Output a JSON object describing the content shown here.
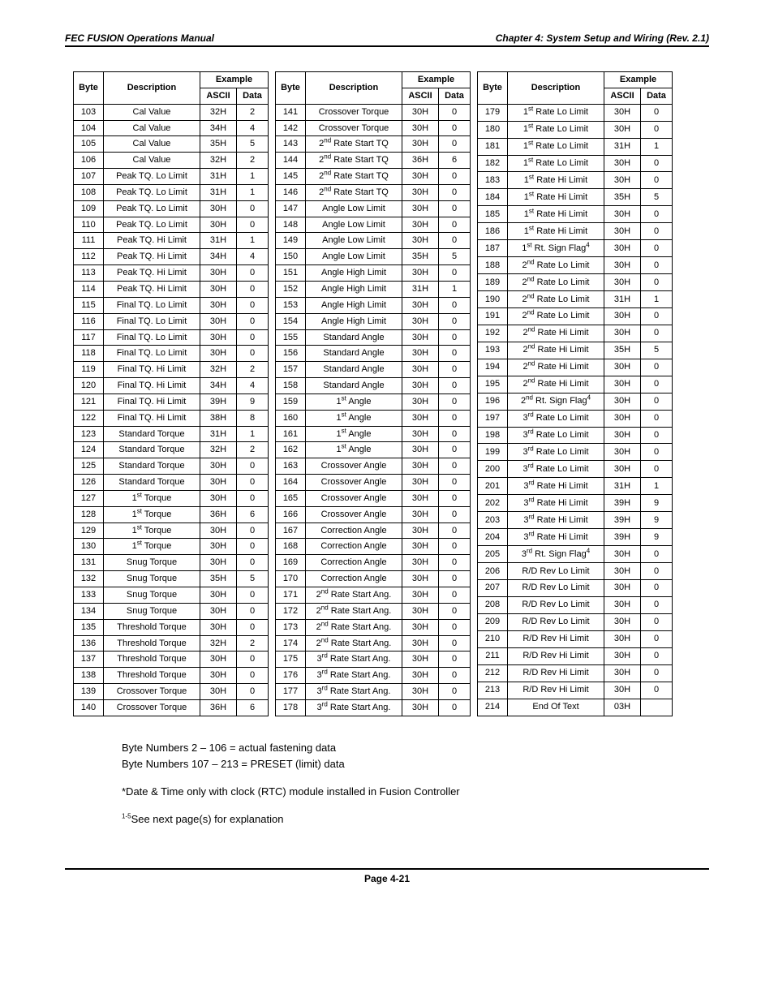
{
  "header": {
    "left": "FEC FUSION Operations Manual",
    "right": "Chapter 4:  System Setup and Wiring     (Rev. 2.1)"
  },
  "theaders": {
    "byte": "Byte",
    "desc": "Description",
    "example": "Example",
    "ascii": "ASCII",
    "data": "Data"
  },
  "table1": [
    {
      "b": "103",
      "d": "Cal Value",
      "a": "32H",
      "v": "2"
    },
    {
      "b": "104",
      "d": "Cal Value",
      "a": "34H",
      "v": "4"
    },
    {
      "b": "105",
      "d": "Cal Value",
      "a": "35H",
      "v": "5"
    },
    {
      "b": "106",
      "d": "Cal Value",
      "a": "32H",
      "v": "2"
    },
    {
      "b": "107",
      "d": "Peak TQ. Lo Limit",
      "a": "31H",
      "v": "1"
    },
    {
      "b": "108",
      "d": "Peak TQ. Lo Limit",
      "a": "31H",
      "v": "1"
    },
    {
      "b": "109",
      "d": "Peak TQ. Lo Limit",
      "a": "30H",
      "v": "0"
    },
    {
      "b": "110",
      "d": "Peak TQ. Lo Limit",
      "a": "30H",
      "v": "0"
    },
    {
      "b": "111",
      "d": "Peak TQ. Hi Limit",
      "a": "31H",
      "v": "1"
    },
    {
      "b": "112",
      "d": "Peak TQ. Hi Limit",
      "a": "34H",
      "v": "4"
    },
    {
      "b": "113",
      "d": "Peak TQ. Hi Limit",
      "a": "30H",
      "v": "0"
    },
    {
      "b": "114",
      "d": "Peak TQ. Hi Limit",
      "a": "30H",
      "v": "0"
    },
    {
      "b": "115",
      "d": "Final TQ. Lo Limit",
      "a": "30H",
      "v": "0"
    },
    {
      "b": "116",
      "d": "Final TQ. Lo Limit",
      "a": "30H",
      "v": "0"
    },
    {
      "b": "117",
      "d": "Final TQ. Lo Limit",
      "a": "30H",
      "v": "0"
    },
    {
      "b": "118",
      "d": "Final TQ. Lo Limit",
      "a": "30H",
      "v": "0"
    },
    {
      "b": "119",
      "d": "Final TQ. Hi Limit",
      "a": "32H",
      "v": "2"
    },
    {
      "b": "120",
      "d": "Final TQ. Hi Limit",
      "a": "34H",
      "v": "4"
    },
    {
      "b": "121",
      "d": "Final TQ. Hi Limit",
      "a": "39H",
      "v": "9"
    },
    {
      "b": "122",
      "d": "Final TQ. Hi Limit",
      "a": "38H",
      "v": "8"
    },
    {
      "b": "123",
      "d": "Standard Torque",
      "a": "31H",
      "v": "1"
    },
    {
      "b": "124",
      "d": "Standard Torque",
      "a": "32H",
      "v": "2"
    },
    {
      "b": "125",
      "d": "Standard Torque",
      "a": "30H",
      "v": "0"
    },
    {
      "b": "126",
      "d": "Standard Torque",
      "a": "30H",
      "v": "0"
    },
    {
      "b": "127",
      "d": "1<sup>st</sup> Torque",
      "a": "30H",
      "v": "0"
    },
    {
      "b": "128",
      "d": "1<sup>st</sup> Torque",
      "a": "36H",
      "v": "6"
    },
    {
      "b": "129",
      "d": "1<sup>st</sup> Torque",
      "a": "30H",
      "v": "0"
    },
    {
      "b": "130",
      "d": "1<sup>st</sup> Torque",
      "a": "30H",
      "v": "0"
    },
    {
      "b": "131",
      "d": "Snug Torque",
      "a": "30H",
      "v": "0"
    },
    {
      "b": "132",
      "d": "Snug Torque",
      "a": "35H",
      "v": "5"
    },
    {
      "b": "133",
      "d": "Snug Torque",
      "a": "30H",
      "v": "0"
    },
    {
      "b": "134",
      "d": "Snug Torque",
      "a": "30H",
      "v": "0"
    },
    {
      "b": "135",
      "d": "Threshold Torque",
      "a": "30H",
      "v": "0"
    },
    {
      "b": "136",
      "d": "Threshold Torque",
      "a": "32H",
      "v": "2"
    },
    {
      "b": "137",
      "d": "Threshold Torque",
      "a": "30H",
      "v": "0"
    },
    {
      "b": "138",
      "d": "Threshold Torque",
      "a": "30H",
      "v": "0"
    },
    {
      "b": "139",
      "d": "Crossover Torque",
      "a": "30H",
      "v": "0"
    },
    {
      "b": "140",
      "d": "Crossover Torque",
      "a": "36H",
      "v": "6"
    }
  ],
  "table2": [
    {
      "b": "141",
      "d": "Crossover Torque",
      "a": "30H",
      "v": "0"
    },
    {
      "b": "142",
      "d": "Crossover Torque",
      "a": "30H",
      "v": "0"
    },
    {
      "b": "143",
      "d": "2<sup>nd</sup> Rate Start TQ",
      "a": "30H",
      "v": "0"
    },
    {
      "b": "144",
      "d": "2<sup>nd</sup> Rate Start TQ",
      "a": "36H",
      "v": "6"
    },
    {
      "b": "145",
      "d": "2<sup>nd</sup> Rate Start TQ",
      "a": "30H",
      "v": "0"
    },
    {
      "b": "146",
      "d": "2<sup>nd</sup> Rate Start TQ",
      "a": "30H",
      "v": "0"
    },
    {
      "b": "147",
      "d": "Angle Low Limit",
      "a": "30H",
      "v": "0"
    },
    {
      "b": "148",
      "d": "Angle Low Limit",
      "a": "30H",
      "v": "0"
    },
    {
      "b": "149",
      "d": "Angle Low Limit",
      "a": "30H",
      "v": "0"
    },
    {
      "b": "150",
      "d": "Angle Low Limit",
      "a": "35H",
      "v": "5"
    },
    {
      "b": "151",
      "d": "Angle High Limit",
      "a": "30H",
      "v": "0"
    },
    {
      "b": "152",
      "d": "Angle High Limit",
      "a": "31H",
      "v": "1"
    },
    {
      "b": "153",
      "d": "Angle High Limit",
      "a": "30H",
      "v": "0"
    },
    {
      "b": "154",
      "d": "Angle High Limit",
      "a": "30H",
      "v": "0"
    },
    {
      "b": "155",
      "d": "Standard Angle",
      "a": "30H",
      "v": "0"
    },
    {
      "b": "156",
      "d": "Standard Angle",
      "a": "30H",
      "v": "0"
    },
    {
      "b": "157",
      "d": "Standard Angle",
      "a": "30H",
      "v": "0"
    },
    {
      "b": "158",
      "d": "Standard Angle",
      "a": "30H",
      "v": "0"
    },
    {
      "b": "159",
      "d": "1<sup>st</sup> Angle",
      "a": "30H",
      "v": "0"
    },
    {
      "b": "160",
      "d": "1<sup>st</sup> Angle",
      "a": "30H",
      "v": "0"
    },
    {
      "b": "161",
      "d": "1<sup>st</sup> Angle",
      "a": "30H",
      "v": "0"
    },
    {
      "b": "162",
      "d": "1<sup>st</sup> Angle",
      "a": "30H",
      "v": "0"
    },
    {
      "b": "163",
      "d": "Crossover Angle",
      "a": "30H",
      "v": "0"
    },
    {
      "b": "164",
      "d": "Crossover Angle",
      "a": "30H",
      "v": "0"
    },
    {
      "b": "165",
      "d": "Crossover Angle",
      "a": "30H",
      "v": "0"
    },
    {
      "b": "166",
      "d": "Crossover Angle",
      "a": "30H",
      "v": "0"
    },
    {
      "b": "167",
      "d": "Correction Angle",
      "a": "30H",
      "v": "0"
    },
    {
      "b": "168",
      "d": "Correction Angle",
      "a": "30H",
      "v": "0"
    },
    {
      "b": "169",
      "d": "Correction Angle",
      "a": "30H",
      "v": "0"
    },
    {
      "b": "170",
      "d": "Correction Angle",
      "a": "30H",
      "v": "0"
    },
    {
      "b": "171",
      "d": "2<sup>nd</sup> Rate Start Ang.",
      "a": "30H",
      "v": "0"
    },
    {
      "b": "172",
      "d": "2<sup>nd</sup> Rate Start Ang.",
      "a": "30H",
      "v": "0"
    },
    {
      "b": "173",
      "d": "2<sup>nd</sup> Rate Start Ang.",
      "a": "30H",
      "v": "0"
    },
    {
      "b": "174",
      "d": "2<sup>nd</sup> Rate Start Ang.",
      "a": "30H",
      "v": "0"
    },
    {
      "b": "175",
      "d": "3<sup>rd</sup> Rate Start Ang.",
      "a": "30H",
      "v": "0"
    },
    {
      "b": "176",
      "d": "3<sup>rd</sup> Rate Start Ang.",
      "a": "30H",
      "v": "0"
    },
    {
      "b": "177",
      "d": "3<sup>rd</sup> Rate Start Ang.",
      "a": "30H",
      "v": "0"
    },
    {
      "b": "178",
      "d": "3<sup>rd</sup> Rate Start Ang.",
      "a": "30H",
      "v": "0"
    }
  ],
  "table3": [
    {
      "b": "179",
      "d": "1<sup>st</sup> Rate Lo Limit",
      "a": "30H",
      "v": "0"
    },
    {
      "b": "180",
      "d": "1<sup>st</sup> Rate Lo Limit",
      "a": "30H",
      "v": "0"
    },
    {
      "b": "181",
      "d": "1<sup>st</sup> Rate Lo Limit",
      "a": "31H",
      "v": "1"
    },
    {
      "b": "182",
      "d": "1<sup>st</sup> Rate Lo Limit",
      "a": "30H",
      "v": "0"
    },
    {
      "b": "183",
      "d": "1<sup>st</sup> Rate Hi Limit",
      "a": "30H",
      "v": "0"
    },
    {
      "b": "184",
      "d": "1<sup>st</sup> Rate Hi Limit",
      "a": "35H",
      "v": "5"
    },
    {
      "b": "185",
      "d": "1<sup>st</sup> Rate Hi Limit",
      "a": "30H",
      "v": "0"
    },
    {
      "b": "186",
      "d": "1<sup>st</sup> Rate Hi Limit",
      "a": "30H",
      "v": "0"
    },
    {
      "b": "187",
      "d": "1<sup>st</sup> Rt. Sign Flag<sup>4</sup>",
      "a": "30H",
      "v": "0"
    },
    {
      "b": "188",
      "d": "2<sup>nd</sup> Rate Lo Limit",
      "a": "30H",
      "v": "0"
    },
    {
      "b": "189",
      "d": "2<sup>nd</sup> Rate Lo Limit",
      "a": "30H",
      "v": "0"
    },
    {
      "b": "190",
      "d": "2<sup>nd</sup> Rate Lo Limit",
      "a": "31H",
      "v": "1"
    },
    {
      "b": "191",
      "d": "2<sup>nd</sup> Rate Lo Limit",
      "a": "30H",
      "v": "0"
    },
    {
      "b": "192",
      "d": "2<sup>nd</sup> Rate Hi Limit",
      "a": "30H",
      "v": "0"
    },
    {
      "b": "193",
      "d": "2<sup>nd</sup> Rate Hi Limit",
      "a": "35H",
      "v": "5"
    },
    {
      "b": "194",
      "d": "2<sup>nd</sup> Rate Hi Limit",
      "a": "30H",
      "v": "0"
    },
    {
      "b": "195",
      "d": "2<sup>nd</sup> Rate Hi Limit",
      "a": "30H",
      "v": "0"
    },
    {
      "b": "196",
      "d": "2<sup>nd</sup> Rt. Sign Flag<sup>4</sup>",
      "a": "30H",
      "v": "0"
    },
    {
      "b": "197",
      "d": "3<sup>rd</sup> Rate Lo Limit",
      "a": "30H",
      "v": "0"
    },
    {
      "b": "198",
      "d": "3<sup>rd</sup> Rate Lo Limit",
      "a": "30H",
      "v": "0"
    },
    {
      "b": "199",
      "d": "3<sup>rd</sup> Rate Lo Limit",
      "a": "30H",
      "v": "0"
    },
    {
      "b": "200",
      "d": "3<sup>rd</sup> Rate Lo Limit",
      "a": "30H",
      "v": "0"
    },
    {
      "b": "201",
      "d": "3<sup>rd</sup> Rate Hi Limit",
      "a": "31H",
      "v": "1"
    },
    {
      "b": "202",
      "d": "3<sup>rd</sup> Rate Hi Limit",
      "a": "39H",
      "v": "9"
    },
    {
      "b": "203",
      "d": "3<sup>rd</sup> Rate Hi Limit",
      "a": "39H",
      "v": "9"
    },
    {
      "b": "204",
      "d": "3<sup>rd</sup> Rate Hi Limit",
      "a": "39H",
      "v": "9"
    },
    {
      "b": "205",
      "d": "3<sup>rd</sup> Rt. Sign Flag<sup>4</sup>",
      "a": "30H",
      "v": "0"
    },
    {
      "b": "206",
      "d": "R/D Rev Lo Limit",
      "a": "30H",
      "v": "0"
    },
    {
      "b": "207",
      "d": "R/D Rev Lo Limit",
      "a": "30H",
      "v": "0"
    },
    {
      "b": "208",
      "d": "R/D Rev Lo Limit",
      "a": "30H",
      "v": "0"
    },
    {
      "b": "209",
      "d": "R/D Rev Lo Limit",
      "a": "30H",
      "v": "0"
    },
    {
      "b": "210",
      "d": "R/D Rev Hi Limit",
      "a": "30H",
      "v": "0"
    },
    {
      "b": "211",
      "d": "R/D Rev Hi Limit",
      "a": "30H",
      "v": "0"
    },
    {
      "b": "212",
      "d": "R/D Rev Hi Limit",
      "a": "30H",
      "v": "0"
    },
    {
      "b": "213",
      "d": "R/D Rev Hi Limit",
      "a": "30H",
      "v": "0"
    },
    {
      "b": "214",
      "d": "End Of Text",
      "a": "03H",
      "v": ""
    }
  ],
  "notes": {
    "line1": "Byte Numbers 2 – 106 = actual fastening data",
    "line2": "Byte Numbers 107 – 213 =  PRESET (limit) data",
    "line3": "*Date & Time only with clock (RTC) module installed in Fusion Controller",
    "line4_pre_sup": "1-5",
    "line4_rest": "See next page(s) for explanation"
  },
  "footer": {
    "page": "Page 4-21"
  }
}
